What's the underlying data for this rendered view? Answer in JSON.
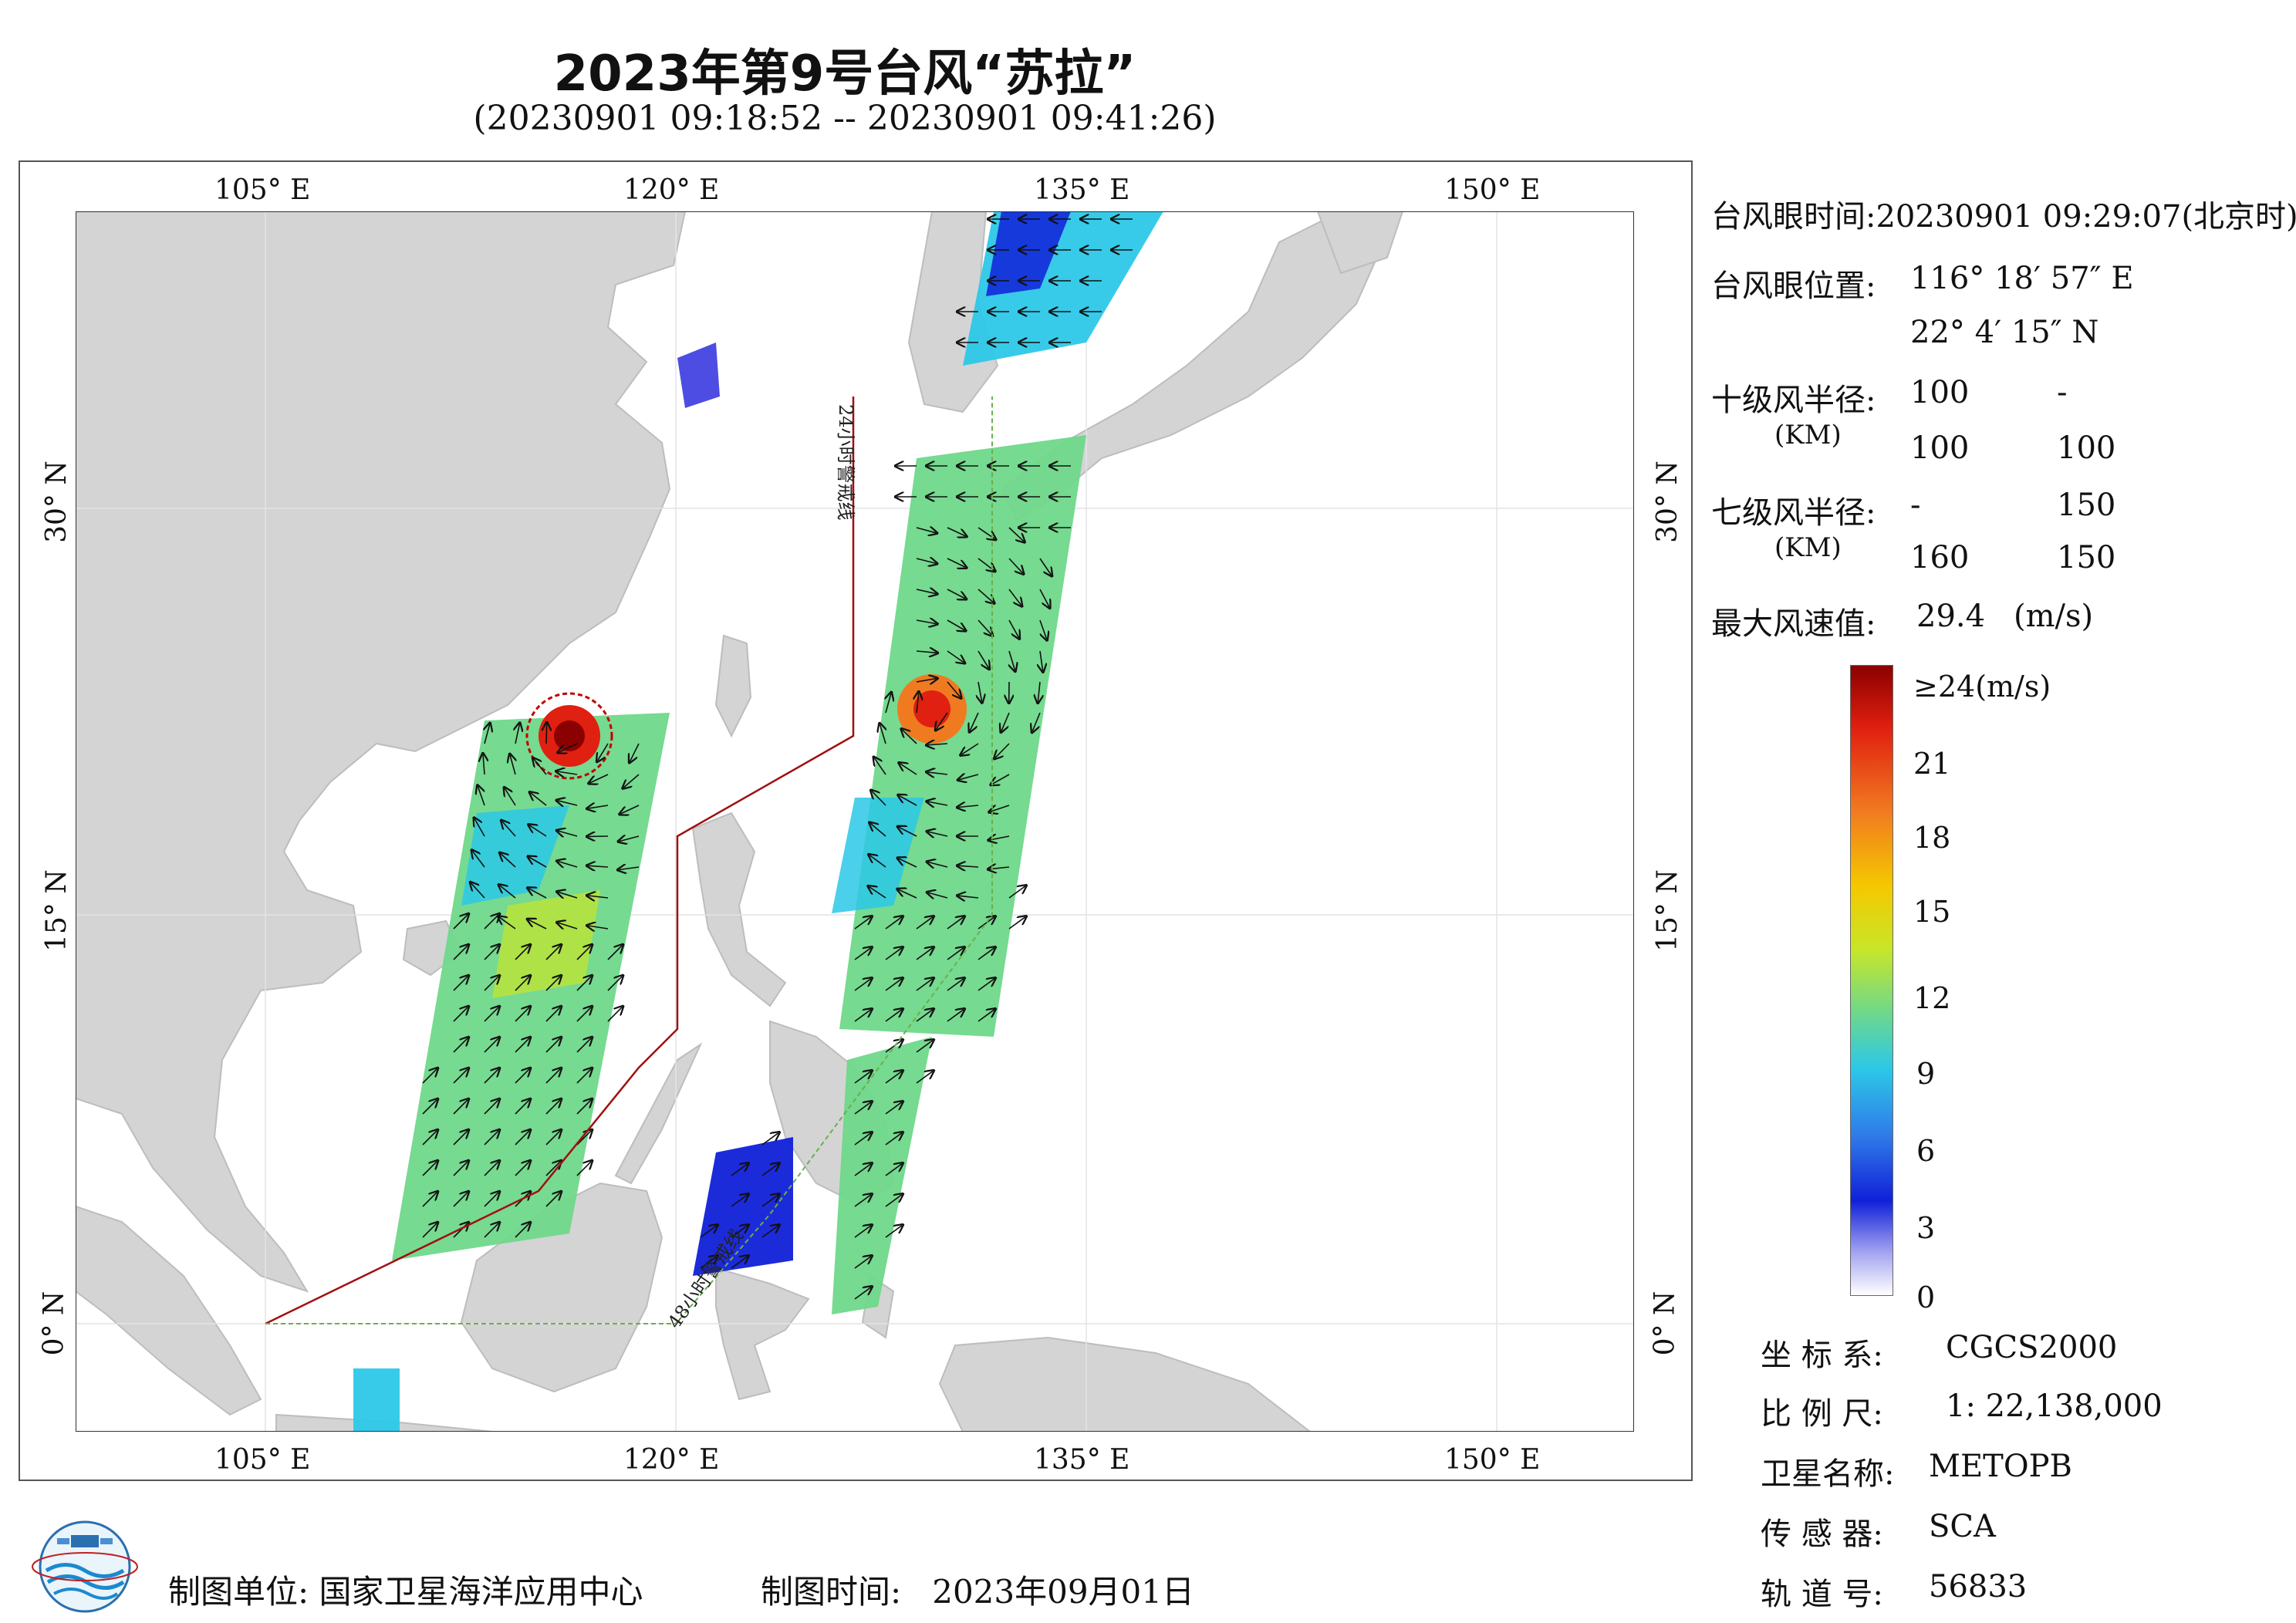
{
  "title": "2023年第9号台风“苏拉”",
  "subtitle": "(20230901 09:18:52 -- 20230901 09:41:26)",
  "map": {
    "lon_range": [
      100,
      155
    ],
    "lat_range": [
      -4,
      41
    ],
    "lon_ticks": [
      "105° E",
      "120° E",
      "135° E",
      "150° E"
    ],
    "lat_ticks": [
      "30° N",
      "15° N",
      "0° N"
    ],
    "warning_24h_label": "24小时警戒线",
    "warning_48h_label": "48小时警戒线",
    "colors": {
      "land": "#d4d4d4",
      "sea": "#ffffff",
      "warning_24h": "#a01010",
      "warning_48h": "#6ab04c"
    }
  },
  "typhoon_info": {
    "eye_time_label": "台风眼时间:",
    "eye_time_value": "20230901 09:29:07(北京时)",
    "eye_pos_label": "台风眼位置:",
    "eye_lon": "116° 18′ 57″ E",
    "eye_lat": "22° 4′ 15″ N",
    "r10_label": "十级风半径:",
    "r10_unit": "(KM)",
    "r10_row1": [
      "100",
      "-"
    ],
    "r10_row2": [
      "100",
      "100"
    ],
    "r7_label": "七级风半径:",
    "r7_unit": "(KM)",
    "r7_row1": [
      "-",
      "150"
    ],
    "r7_row2": [
      "160",
      "150"
    ],
    "max_wind_label": "最大风速值:",
    "max_wind_value": "29.4",
    "max_wind_unit": "(m/s)"
  },
  "colorbar": {
    "labels": [
      "≥24(m/s)",
      "21",
      "18",
      "15",
      "12",
      "9",
      "6",
      "3",
      "0"
    ],
    "stops": [
      "#8b0000",
      "#e02010",
      "#f07a20",
      "#f5c800",
      "#c8e628",
      "#6fd88a",
      "#2cc8e8",
      "#2f78e8",
      "#1020d8",
      "#a0a0f0",
      "#ffffff"
    ]
  },
  "metadata": {
    "coord_label": "坐 标 系:",
    "coord_value": "CGCS2000",
    "scale_label": "比 例 尺:",
    "scale_value": "1: 22,138,000",
    "sat_label": "卫星名称:",
    "sat_value": "METOPB",
    "sensor_label": "传 感 器:",
    "sensor_value": "SCA",
    "orbit_label": "轨 道 号:",
    "orbit_value": "56833"
  },
  "footer": {
    "unit_label": "制图单位:",
    "unit_value": "国家卫星海洋应用中心",
    "time_label": "制图时间:",
    "time_value": "2023年09月01日"
  }
}
